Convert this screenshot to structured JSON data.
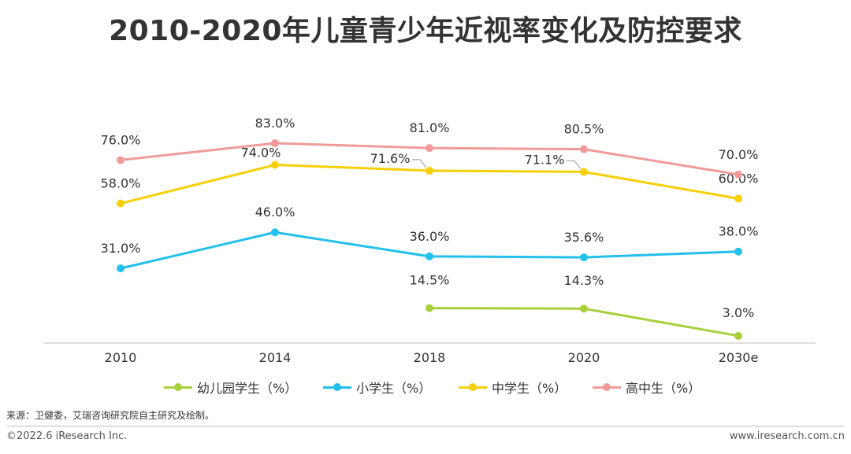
{
  "title": "2010-2020年儿童青少年近视率变化及防控要求",
  "chart_data": {
    "type": "line",
    "categories": [
      "2010",
      "2014",
      "2018",
      "2020",
      "2030e"
    ],
    "series": [
      {
        "name": "幼儿园学生（%）",
        "color": "#a8cf3a",
        "values": [
          null,
          null,
          14.5,
          14.3,
          3.0
        ],
        "labels": [
          "",
          "",
          "14.5%",
          "14.3%",
          "3.0%"
        ]
      },
      {
        "name": "小学生（%）",
        "color": "#22c0ea",
        "values": [
          31.0,
          46.0,
          36.0,
          35.6,
          38.0
        ],
        "labels": [
          "31.0%",
          "46.0%",
          "36.0%",
          "35.6%",
          "38.0%"
        ]
      },
      {
        "name": "中学生（%）",
        "color": "#f7cf07",
        "values": [
          58.0,
          74.0,
          71.6,
          71.1,
          60.0
        ],
        "labels": [
          "58.0%",
          "74.0%",
          "71.6%",
          "71.1%",
          "60.0%"
        ]
      },
      {
        "name": "高中生（%）",
        "color": "#f09a9a",
        "values": [
          76.0,
          83.0,
          81.0,
          80.5,
          70.0
        ],
        "labels": [
          "76.0%",
          "83.0%",
          "81.0%",
          "80.5%",
          "70.0%"
        ]
      }
    ],
    "ylim": [
      0,
      100
    ],
    "grid": false,
    "legend_position": "bottom"
  },
  "footer": {
    "source": "来源：卫健委，艾瑞咨询研究院自主研究及绘制。",
    "copyright": "©2022.6 iResearch Inc.",
    "website": "www.iresearch.com.cn"
  }
}
